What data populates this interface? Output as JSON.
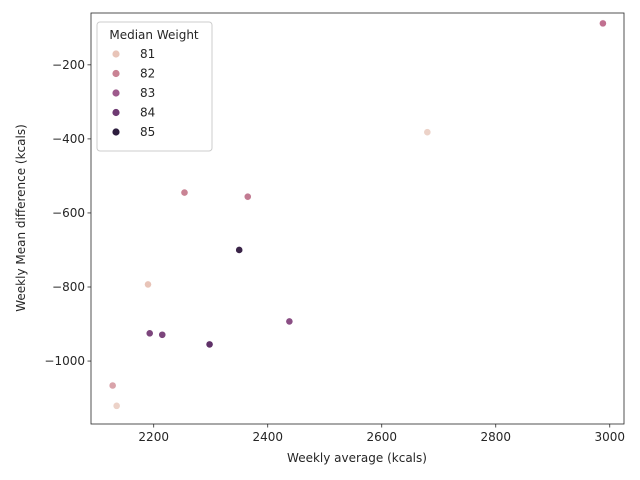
{
  "chart_data": {
    "type": "scatter",
    "title": "",
    "xlabel": "Weekly average (kcals)",
    "ylabel": "Weekly Mean difference (kcals)",
    "xlim": [
      2090,
      3025
    ],
    "ylim": [
      -1170,
      -60
    ],
    "xticks": [
      2200,
      2400,
      2600,
      2800,
      3000
    ],
    "yticks": [
      -1000,
      -800,
      -600,
      -400,
      -200
    ],
    "xtick_labels": [
      "2200",
      "2400",
      "2600",
      "2800",
      "3000"
    ],
    "ytick_labels": [
      "−1000",
      "−800",
      "−600",
      "−400",
      "−200"
    ],
    "grid": false,
    "legend": {
      "title": "Median Weight",
      "placement": "top-left",
      "entries": [
        {
          "label": "81",
          "color": "#e8c4b8"
        },
        {
          "label": "82",
          "color": "#c98394"
        },
        {
          "label": "83",
          "color": "#9e5a8c"
        },
        {
          "label": "84",
          "color": "#6e3a72"
        },
        {
          "label": "85",
          "color": "#2d1e3e"
        }
      ]
    },
    "points": [
      {
        "x": 2988,
        "y": -88,
        "hue": 82.3,
        "color": "#c17090"
      },
      {
        "x": 2680,
        "y": -382,
        "hue": 80.9,
        "color": "#ecd2c8"
      },
      {
        "x": 2254,
        "y": -545,
        "hue": 82.0,
        "color": "#c98394"
      },
      {
        "x": 2365,
        "y": -556,
        "hue": 82.2,
        "color": "#c27b92"
      },
      {
        "x": 2350,
        "y": -700,
        "hue": 84.8,
        "color": "#3a2448"
      },
      {
        "x": 2190,
        "y": -793,
        "hue": 81.0,
        "color": "#e8c4b8"
      },
      {
        "x": 2438,
        "y": -893,
        "hue": 83.3,
        "color": "#8a4e84"
      },
      {
        "x": 2193,
        "y": -925,
        "hue": 83.6,
        "color": "#7c457c"
      },
      {
        "x": 2215,
        "y": -929,
        "hue": 83.6,
        "color": "#7c457c"
      },
      {
        "x": 2298,
        "y": -955,
        "hue": 84.2,
        "color": "#5f3168"
      },
      {
        "x": 2128,
        "y": -1066,
        "hue": 81.5,
        "color": "#d9a3aa"
      },
      {
        "x": 2135,
        "y": -1121,
        "hue": 80.9,
        "color": "#ecd2c8"
      }
    ]
  }
}
